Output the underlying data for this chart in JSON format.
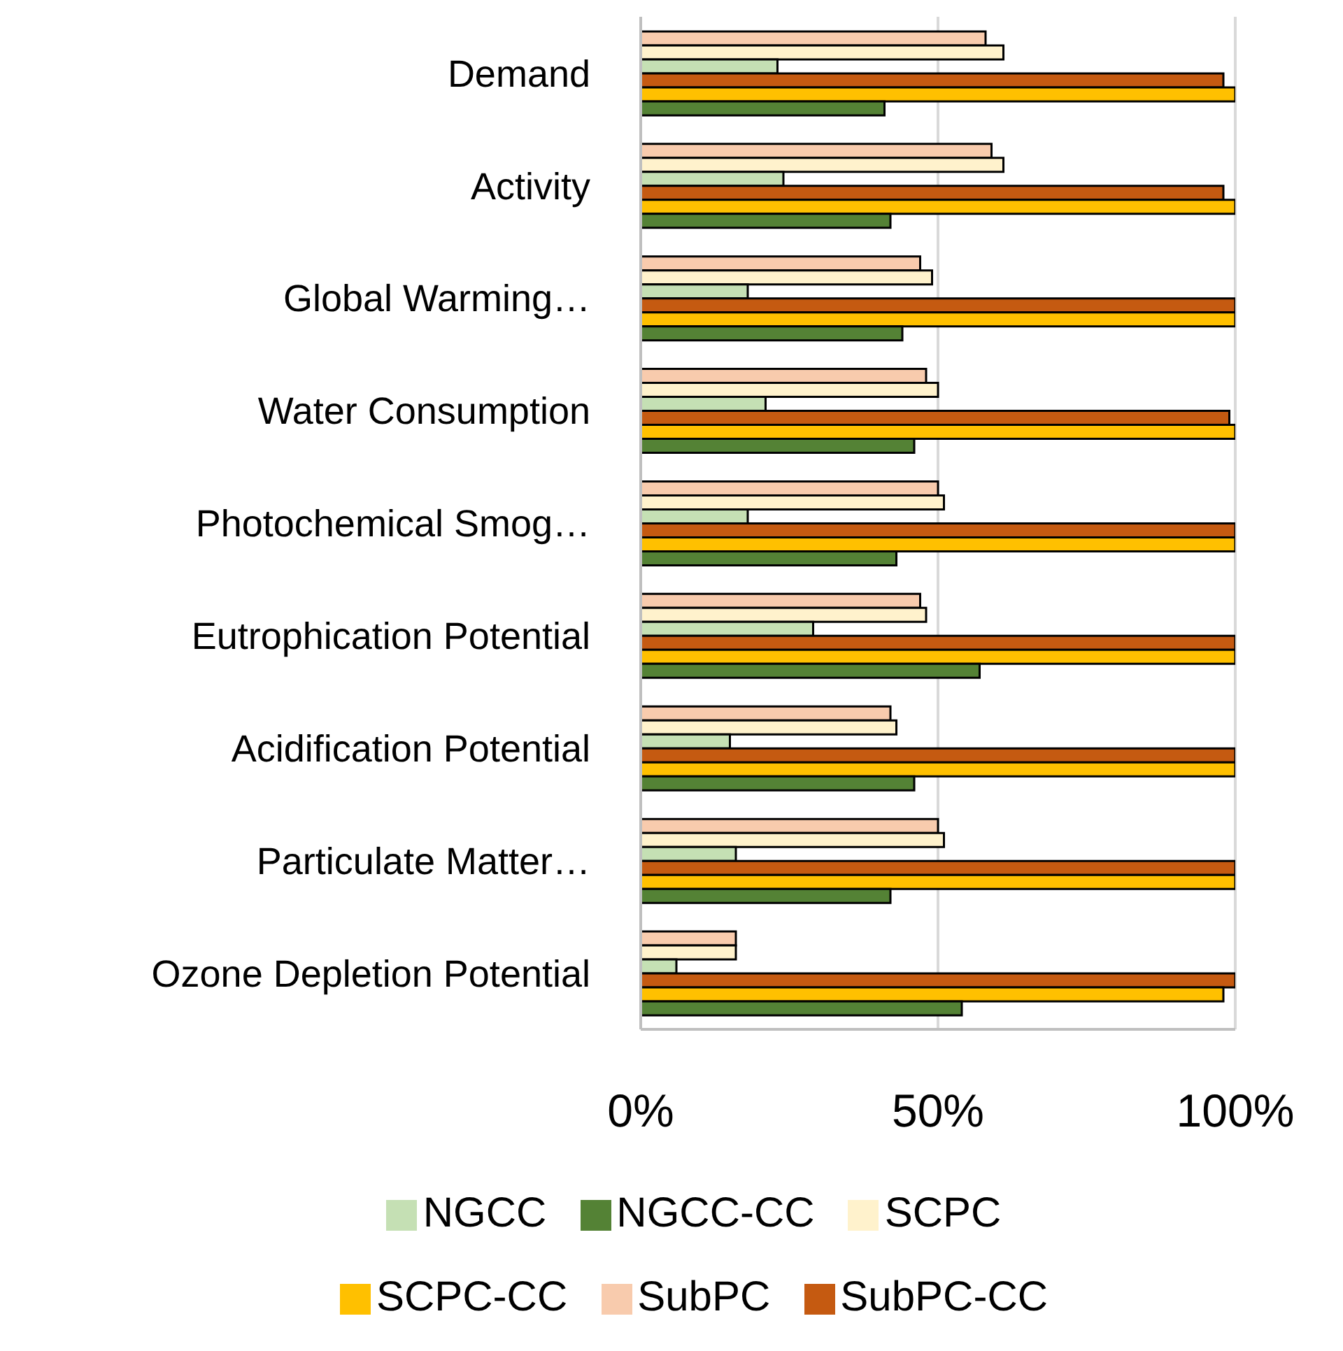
{
  "chart_data": {
    "type": "bar",
    "orientation": "horizontal",
    "categories": [
      "Demand",
      "Activity",
      "Global Warming…",
      "Water Consumption",
      "Photochemical Smog…",
      "Eutrophication Potential",
      "Acidification Potential",
      "Particulate Matter…",
      "Ozone Depletion Potential"
    ],
    "series": [
      {
        "name": "SubPC",
        "color": "#f8cbad",
        "values": [
          58,
          59,
          47,
          48,
          50,
          47,
          42,
          50,
          16
        ]
      },
      {
        "name": "SCPC",
        "color": "#fff2cc",
        "values": [
          61,
          61,
          49,
          50,
          51,
          48,
          43,
          51,
          16
        ]
      },
      {
        "name": "NGCC",
        "color": "#c5e0b4",
        "values": [
          23,
          24,
          18,
          21,
          18,
          29,
          15,
          16,
          6
        ]
      },
      {
        "name": "SubPC-CC",
        "color": "#c55a11",
        "values": [
          98,
          98,
          100,
          99,
          100,
          100,
          100,
          100,
          100
        ]
      },
      {
        "name": "SCPC-CC",
        "color": "#ffc000",
        "values": [
          100,
          100,
          100,
          100,
          100,
          100,
          100,
          100,
          98
        ]
      },
      {
        "name": "NGCC-CC",
        "color": "#548235",
        "values": [
          41,
          42,
          44,
          46,
          43,
          57,
          46,
          42,
          54
        ]
      }
    ],
    "xlim": [
      0,
      100
    ],
    "xticks": [
      {
        "value": 0,
        "label": "0%"
      },
      {
        "value": 50,
        "label": "50%"
      },
      {
        "value": 100,
        "label": "100%"
      }
    ],
    "grid": "x",
    "legend": "bottom"
  }
}
